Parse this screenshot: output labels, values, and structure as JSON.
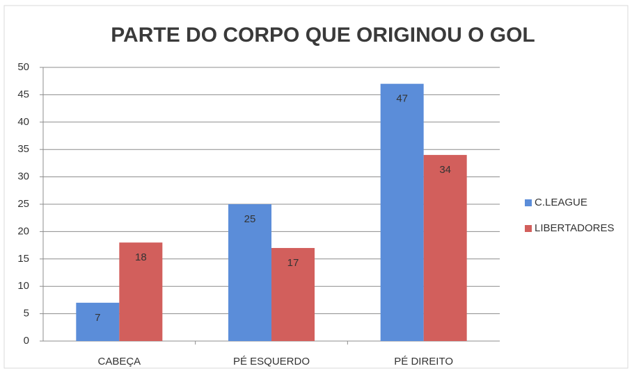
{
  "chart_data": {
    "type": "bar",
    "title": "PARTE DO CORPO QUE ORIGINOU O GOL",
    "categories": [
      "CABEÇA",
      "PÉ ESQUERDO",
      "PÉ DIREITO"
    ],
    "series": [
      {
        "name": "C.LEAGUE",
        "color": "#5b8dd9",
        "values": [
          7,
          25,
          47
        ]
      },
      {
        "name": "LIBERTADORES",
        "color": "#d25f5c",
        "values": [
          18,
          17,
          34
        ]
      }
    ],
    "ylim": [
      0,
      50
    ],
    "yticks": [
      0,
      5,
      10,
      15,
      20,
      25,
      30,
      35,
      40,
      45,
      50
    ],
    "grid": true,
    "legend": "right"
  }
}
